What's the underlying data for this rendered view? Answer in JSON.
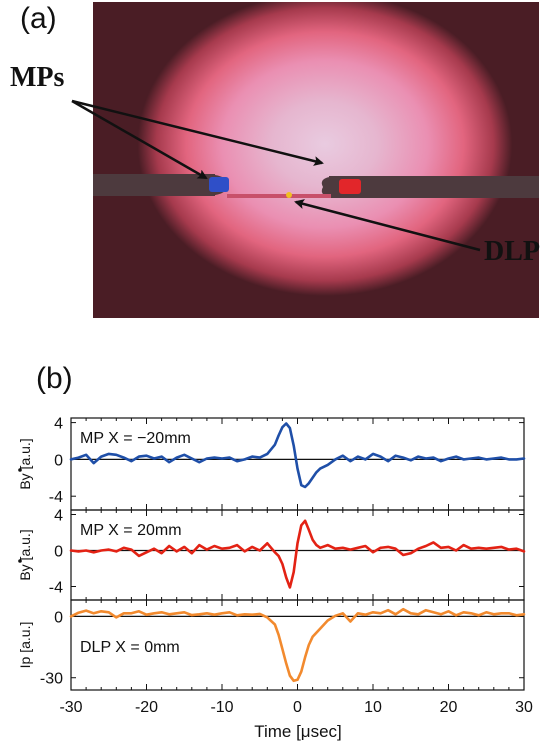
{
  "panel_a": {
    "label": "(a)",
    "annotations": {
      "mps": "MPs",
      "dlp": "DLP"
    }
  },
  "panel_b": {
    "label": "(b)",
    "x_axis": {
      "label": "Time [μsec]",
      "ticks": [
        "-30",
        "-20",
        "-10",
        "0",
        "10",
        "20",
        "30"
      ],
      "xlim": [
        -30,
        30
      ]
    }
  },
  "chart_data": [
    {
      "type": "line",
      "legend_text": "MP X = −20mm",
      "ylabel": "By [a.u.]",
      "yticks": [
        "4",
        "0",
        "-4"
      ],
      "ylim": [
        -5.5,
        4.5
      ],
      "color": "#1f4fa8",
      "series": [
        {
          "x": [
            -30,
            -29,
            -28,
            -27,
            -26,
            -25,
            -24,
            -23,
            -22,
            -21,
            -20,
            -19,
            -18,
            -17,
            -16,
            -15,
            -14,
            -13,
            -12,
            -11,
            -10,
            -9,
            -8,
            -7,
            -6,
            -5,
            -4,
            -3,
            -2.5,
            -2,
            -1.5,
            -1,
            -0.5,
            0,
            0.5,
            1,
            1.5,
            2,
            2.5,
            3,
            4,
            5,
            6,
            7,
            8,
            9,
            10,
            11,
            12,
            13,
            14,
            15,
            16,
            17,
            18,
            19,
            20,
            21,
            22,
            23,
            24,
            25,
            26,
            27,
            28,
            29,
            30
          ],
          "y": [
            0,
            0.2,
            0.5,
            -0.4,
            0.3,
            0.6,
            0.5,
            0.2,
            -0.2,
            0.3,
            0.4,
            0.1,
            0.3,
            -0.3,
            0.2,
            0.5,
            0.1,
            -0.3,
            0.1,
            0.2,
            0.1,
            0.2,
            -0.2,
            0,
            0.3,
            0.2,
            0.6,
            1.6,
            2.6,
            3.5,
            3.9,
            3.4,
            1.5,
            -1.0,
            -2.8,
            -3.0,
            -2.6,
            -2.0,
            -1.4,
            -1.0,
            -0.6,
            0,
            0.4,
            -0.2,
            0.3,
            0,
            0.6,
            0.3,
            -0.2,
            0.4,
            0.2,
            -0.1,
            0.3,
            0.1,
            0.2,
            -0.2,
            0.1,
            0.3,
            0,
            0.1,
            0.2,
            0,
            0.1,
            0.2,
            0,
            0,
            0.1
          ]
        }
      ]
    },
    {
      "type": "line",
      "legend_text": "MP X = 20mm",
      "ylabel": "By [a.u.]",
      "yticks": [
        "4",
        "0",
        "-4"
      ],
      "ylim": [
        -5.5,
        4.5
      ],
      "color": "#e32214",
      "series": [
        {
          "x": [
            -30,
            -29,
            -28,
            -27,
            -26,
            -25,
            -24,
            -23,
            -22,
            -21,
            -20,
            -19,
            -18,
            -17,
            -16,
            -15,
            -14,
            -13,
            -12,
            -11,
            -10,
            -9,
            -8,
            -7,
            -6,
            -5,
            -4,
            -3,
            -2.5,
            -2,
            -1.5,
            -1,
            -0.5,
            0,
            0.5,
            1,
            1.5,
            2,
            2.5,
            3,
            4,
            5,
            6,
            7,
            8,
            9,
            10,
            11,
            12,
            13,
            14,
            15,
            16,
            17,
            18,
            19,
            20,
            21,
            22,
            23,
            24,
            25,
            26,
            27,
            28,
            29,
            30
          ],
          "y": [
            0,
            -0.1,
            0,
            -0.2,
            0,
            0.1,
            -0.1,
            0.3,
            0.1,
            -0.6,
            -0.2,
            0.2,
            -0.3,
            0.5,
            -0.1,
            0.4,
            -0.3,
            0.6,
            0.1,
            0.5,
            0.2,
            0.3,
            0.6,
            -0.1,
            0.4,
            0,
            0.8,
            -0.2,
            -0.6,
            -1.5,
            -3.0,
            -4.1,
            -2.4,
            0.8,
            2.8,
            3.3,
            2.3,
            1.2,
            0.6,
            0.3,
            0.6,
            0.2,
            0.3,
            0.1,
            0.3,
            0.5,
            -0.2,
            0.3,
            0.4,
            0.2,
            -0.5,
            -0.3,
            0.2,
            0.5,
            0.9,
            0.3,
            0.4,
            0,
            0.6,
            0.2,
            0.3,
            0.2,
            0.3,
            0.4,
            0.1,
            0.2,
            -0.1
          ]
        }
      ]
    },
    {
      "type": "line",
      "legend_text": "DLP X = 0mm",
      "ylabel": "Ip [a.u.]",
      "yticks": [
        "0",
        "-30"
      ],
      "ylim": [
        -36,
        8
      ],
      "color": "#f28a2e",
      "series": [
        {
          "x": [
            -30,
            -29,
            -28,
            -27,
            -26,
            -25,
            -24,
            -23,
            -22,
            -21,
            -20,
            -19,
            -18,
            -17,
            -16,
            -15,
            -14,
            -13,
            -12,
            -11,
            -10,
            -9,
            -8,
            -7,
            -6,
            -5,
            -4,
            -3,
            -2.5,
            -2,
            -1.5,
            -1,
            -0.5,
            0,
            0.5,
            1,
            1.5,
            2,
            3,
            4,
            5,
            6,
            7,
            8,
            9,
            10,
            11,
            12,
            13,
            14,
            15,
            16,
            17,
            18,
            19,
            20,
            21,
            22,
            23,
            24,
            25,
            26,
            27,
            28,
            29,
            30
          ],
          "y": [
            0,
            1.8,
            2.8,
            1.5,
            2.5,
            2.0,
            -0.5,
            1.5,
            1.5,
            2.5,
            0.8,
            1.5,
            2.0,
            1.0,
            1.5,
            2.0,
            0.6,
            1.0,
            1.5,
            0.8,
            1.5,
            2.0,
            0.5,
            1.0,
            0.8,
            1.2,
            -0.5,
            -4,
            -9,
            -16,
            -23,
            -29,
            -31.5,
            -31,
            -27,
            -20,
            -14,
            -10,
            -6,
            -2,
            0.3,
            1.5,
            -2.5,
            1.5,
            0.8,
            2.0,
            1.5,
            3.0,
            1.0,
            3.5,
            1.5,
            1.0,
            3.0,
            2.0,
            1.0,
            2.5,
            0.5,
            2.0,
            1.5,
            0.5,
            2.0,
            1.0,
            1.5,
            1.5,
            0.5,
            1.0
          ]
        }
      ]
    }
  ]
}
